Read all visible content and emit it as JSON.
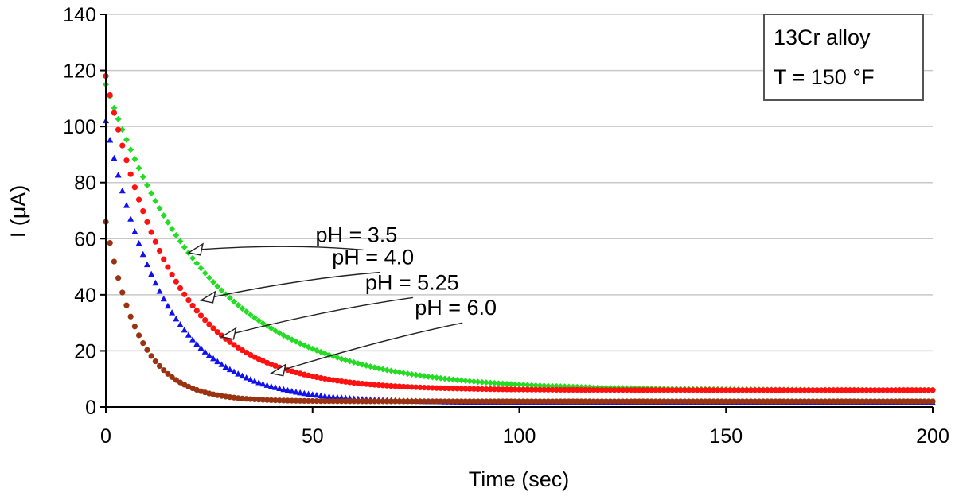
{
  "chart_data": {
    "type": "scatter",
    "xlabel": "Time (sec)",
    "ylabel": "I (μA)",
    "xlim": [
      0,
      200
    ],
    "ylim": [
      0,
      140
    ],
    "x_ticks": [
      "0",
      "50",
      "100",
      "150",
      "200"
    ],
    "y_ticks": [
      "0",
      "20",
      "40",
      "60",
      "80",
      "100",
      "120",
      "140"
    ],
    "grid": "horizontal",
    "info_box": [
      "13Cr alloy",
      "T = 150 °F"
    ],
    "info_box_placement": "top-right",
    "series": [
      {
        "label": "pH = 3.5",
        "color": "#22dd22",
        "marker": "diamond",
        "i0": 115,
        "i_inf": 6,
        "tau": 25,
        "label_at": [
          18,
          56
        ],
        "arrow_tip": [
          20,
          55
        ]
      },
      {
        "label": "pH = 4.0",
        "color": "#ff1111",
        "marker": "circle",
        "i0": 118,
        "i_inf": 6,
        "tau": 16,
        "label_at": [
          22,
          48
        ],
        "arrow_tip": [
          23,
          38
        ]
      },
      {
        "label": "pH = 5.25",
        "color": "#1111ee",
        "marker": "triangle",
        "i0": 102,
        "i_inf": 1.5,
        "tau": 14,
        "label_at": [
          30,
          39
        ],
        "arrow_tip": [
          28,
          25
        ]
      },
      {
        "label": "pH = 6.0",
        "color": "#993311",
        "marker": "circle",
        "i0": 66,
        "i_inf": 2,
        "tau": 8,
        "label_at": [
          42,
          30
        ],
        "arrow_tip": [
          40,
          12
        ]
      }
    ]
  }
}
